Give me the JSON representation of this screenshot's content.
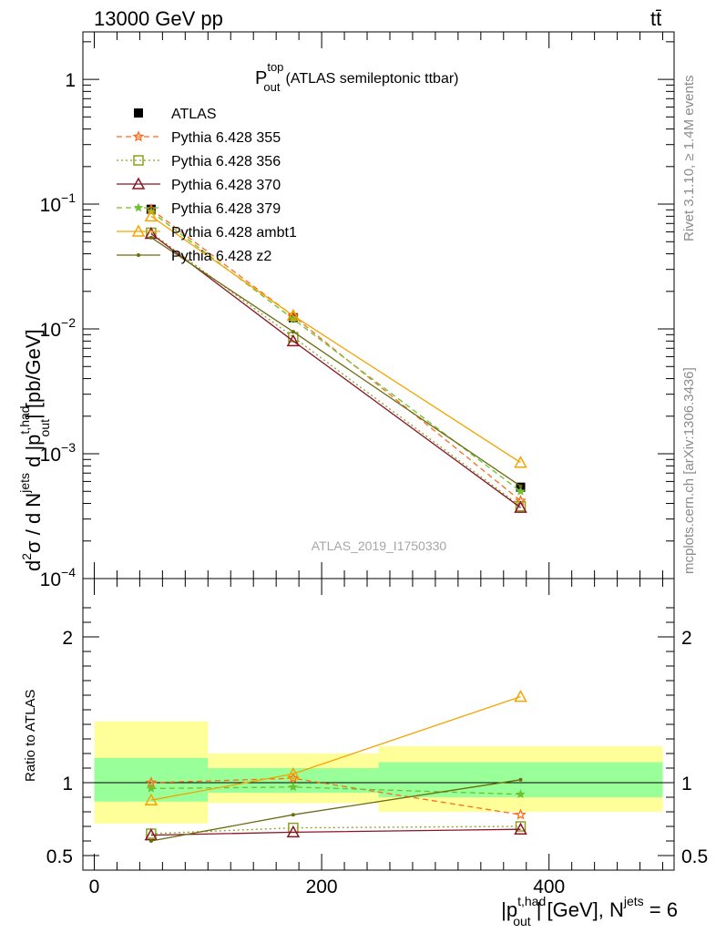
{
  "header": {
    "energy_label": "13000 GeV pp",
    "process_label": "tt̄"
  },
  "side_labels": {
    "rivet": "Rivet 3.1.10, ≥ 1.4M events",
    "mcplots": "mcplots.cern.ch [arXiv:1306.3436]"
  },
  "colors": {
    "ATLAS": "#000000",
    "Pythia 6.428 355": "#ff6a1a",
    "Pythia 6.428 356": "#8aa01e",
    "Pythia 6.428 370": "#8b1426",
    "Pythia 6.428 379": "#6cc22f",
    "Pythia 6.428 ambt1": "#f5a300",
    "Pythia 6.428 z2": "#6b6b10",
    "band_stat": "#99ff99",
    "band_total": "#ffff99"
  },
  "chart_data": [
    {
      "type": "line",
      "title_main": "P",
      "title_sup": "top",
      "title_sub": "out",
      "title_rest": "(ATLAS semileptonic ttbar)",
      "analysis_label": "ATLAS_2019_I1750330",
      "ylabel": "d²σ / d N^jets d |p_out^t,had| [pb/GeV]",
      "ylabel_parts": {
        "a": "d",
        "b": "2",
        "c": "σ  /  d N",
        "d": "jets",
        "e": " d |p",
        "f": "t,had",
        "g": "out",
        "h": "| [pb/GeV]"
      },
      "yscale": "log",
      "ylim": [
        0.0001,
        2.4
      ],
      "xlim": [
        -10,
        510
      ],
      "yticks": [
        {
          "v": 1,
          "m": "1",
          "e": ""
        },
        {
          "v": 0.1,
          "m": "10",
          "e": "−1"
        },
        {
          "v": 0.01,
          "m": "10",
          "e": "−2"
        },
        {
          "v": 0.001,
          "m": "10",
          "e": "−3"
        },
        {
          "v": 0.0001,
          "m": "10",
          "e": "−4"
        }
      ],
      "legend_position": "top-left",
      "x": [
        50,
        175,
        375
      ],
      "series": [
        {
          "name": "ATLAS",
          "values": [
            0.091,
            0.0123,
            0.00054
          ],
          "style": "data",
          "marker": "square"
        },
        {
          "name": "Pythia 6.428 355",
          "values": [
            0.091,
            0.0127,
            0.00042
          ],
          "dash": "6,4",
          "marker": "star"
        },
        {
          "name": "Pythia 6.428 356",
          "values": [
            0.059,
            0.0086,
            0.00038
          ],
          "dash": "2,3",
          "marker": "square-open"
        },
        {
          "name": "Pythia 6.428 370",
          "values": [
            0.058,
            0.008,
            0.00037
          ],
          "dash": "",
          "marker": "triangle-open"
        },
        {
          "name": "Pythia 6.428 379",
          "values": [
            0.087,
            0.012,
            0.0005
          ],
          "dash": "6,4",
          "marker": "star-small"
        },
        {
          "name": "Pythia 6.428 ambt1",
          "values": [
            0.08,
            0.0128,
            0.00085
          ],
          "dash": "",
          "marker": "triangle-open"
        },
        {
          "name": "Pythia 6.428 z2",
          "values": [
            0.054,
            0.0095,
            0.00055
          ],
          "dash": "",
          "marker": "dot"
        }
      ]
    },
    {
      "type": "line",
      "ylabel": "Ratio to ATLAS",
      "xlabel_parts": {
        "a": "|p",
        "b": "t,had",
        "c": "out",
        "d": "| [GeV], N",
        "e": "jets",
        "f": " = 6"
      },
      "ylim": [
        0.4,
        2.4
      ],
      "xlim": [
        -10,
        510
      ],
      "yticks": [
        0.5,
        1,
        2
      ],
      "xticks": [
        0,
        200,
        400
      ],
      "x": [
        50,
        175,
        375
      ],
      "bands": [
        {
          "x0": 0,
          "x1": 100,
          "stat": [
            0.87,
            1.17
          ],
          "total": [
            0.72,
            1.42
          ]
        },
        {
          "x0": 100,
          "x1": 250,
          "stat": [
            0.93,
            1.1
          ],
          "total": [
            0.86,
            1.2
          ]
        },
        {
          "x0": 250,
          "x1": 500,
          "stat": [
            0.9,
            1.14
          ],
          "total": [
            0.8,
            1.25
          ]
        }
      ],
      "series": [
        {
          "name": "Pythia 6.428 355",
          "values": [
            1.0,
            1.03,
            0.78
          ]
        },
        {
          "name": "Pythia 6.428 356",
          "values": [
            0.65,
            0.69,
            0.7
          ]
        },
        {
          "name": "Pythia 6.428 370",
          "values": [
            0.64,
            0.66,
            0.68
          ]
        },
        {
          "name": "Pythia 6.428 379",
          "values": [
            0.96,
            0.97,
            0.92
          ]
        },
        {
          "name": "Pythia 6.428 ambt1",
          "values": [
            0.88,
            1.06,
            1.59
          ]
        },
        {
          "name": "Pythia 6.428 z2",
          "values": [
            0.6,
            0.78,
            1.02
          ]
        }
      ]
    }
  ]
}
